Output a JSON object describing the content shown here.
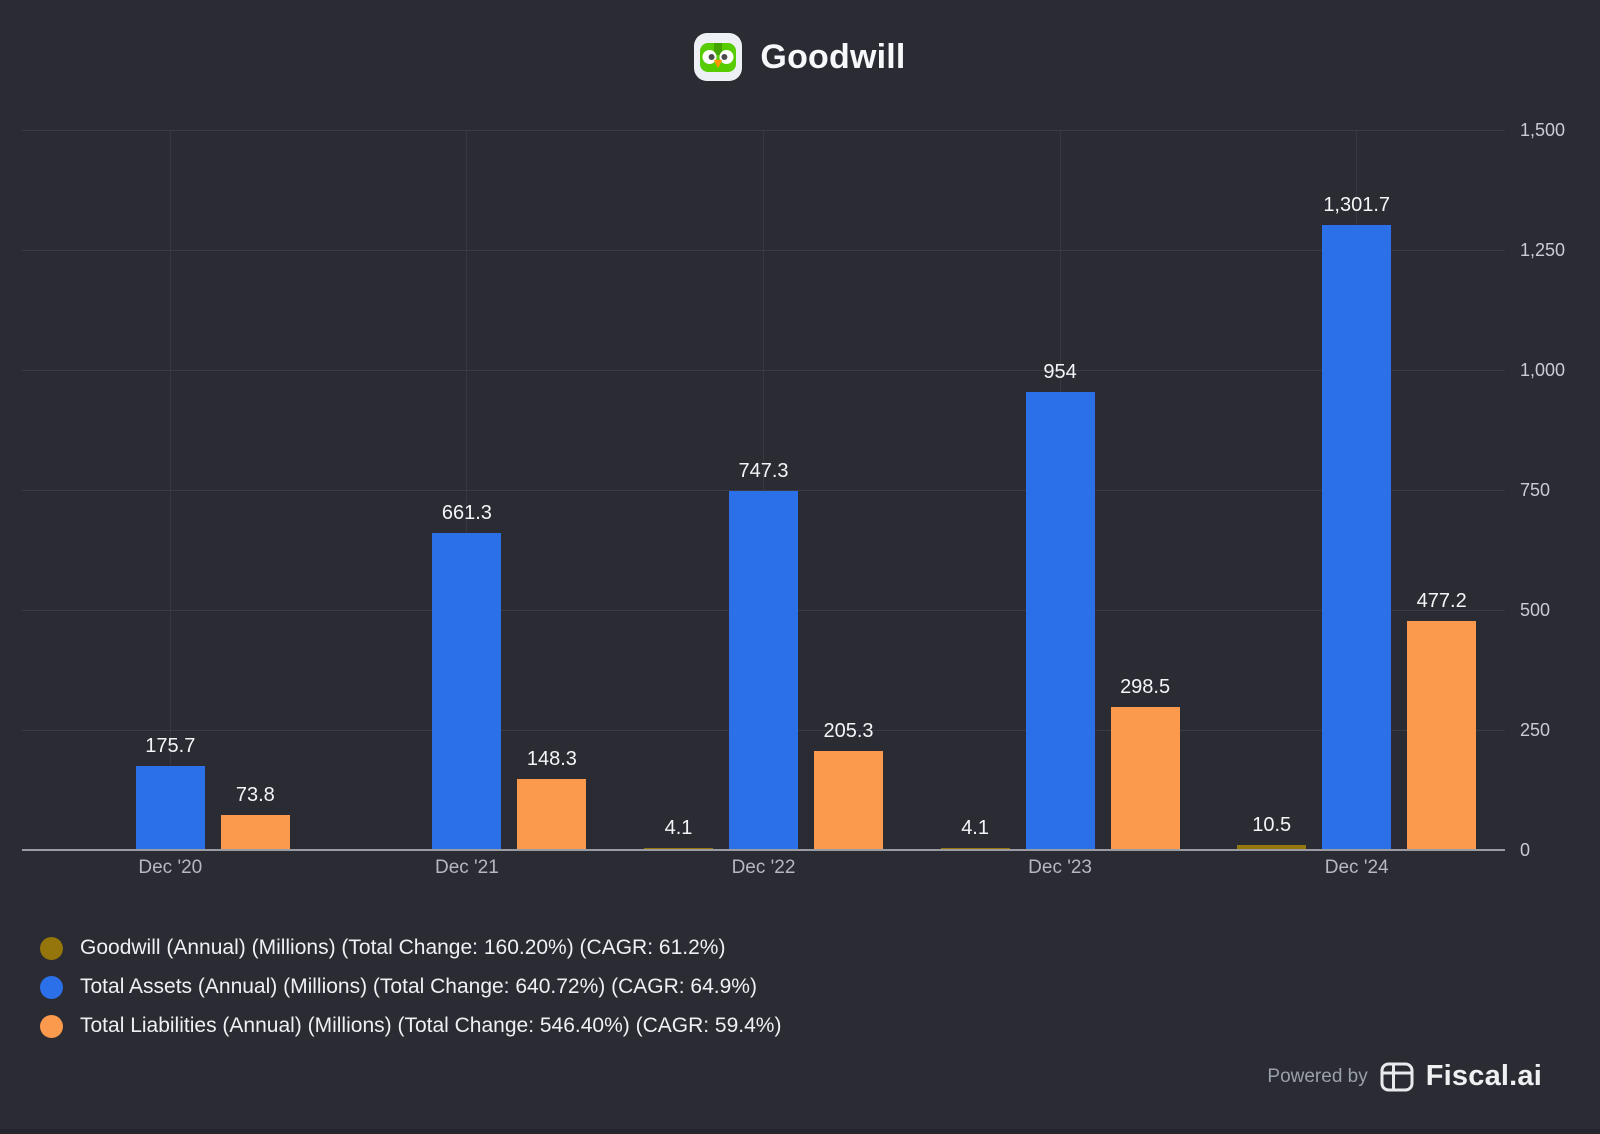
{
  "title": "Goodwill",
  "axis": {
    "ticks": [
      {
        "value": 0,
        "label": "0"
      },
      {
        "value": 250,
        "label": "250"
      },
      {
        "value": 500,
        "label": "500"
      },
      {
        "value": 750,
        "label": "750"
      },
      {
        "value": 1000,
        "label": "1,000"
      },
      {
        "value": 1250,
        "label": "1,250"
      },
      {
        "value": 1500,
        "label": "1,500"
      }
    ]
  },
  "chart_data": {
    "type": "bar",
    "title": "Goodwill",
    "categories": [
      "Dec '20",
      "Dec '21",
      "Dec '22",
      "Dec '23",
      "Dec '24"
    ],
    "series": [
      {
        "name": "Goodwill (Annual) (Millions) (Total Change: 160.20%) (CAGR: 61.2%)",
        "color": "#94760a",
        "values": [
          null,
          null,
          4.1,
          4.1,
          10.5
        ],
        "labels": [
          "",
          "",
          "4.1",
          "4.1",
          "10.5"
        ]
      },
      {
        "name": "Total Assets (Annual) (Millions) (Total Change: 640.72%) (CAGR: 64.9%)",
        "color": "#2b70e8",
        "values": [
          175.7,
          661.3,
          747.3,
          954,
          1301.7
        ],
        "labels": [
          "175.7",
          "661.3",
          "747.3",
          "954",
          "1,301.7"
        ]
      },
      {
        "name": "Total Liabilities (Annual) (Millions) (Total Change: 546.40%) (CAGR: 59.4%)",
        "color": "#fb9a4d",
        "values": [
          73.8,
          148.3,
          205.3,
          298.5,
          477.2
        ],
        "labels": [
          "73.8",
          "148.3",
          "205.3",
          "298.5",
          "477.2"
        ]
      }
    ],
    "ylim": [
      0,
      1500
    ],
    "y_axis_side": "right",
    "grid": true,
    "legend_position": "bottom-left"
  },
  "footer": {
    "powered_by": "Powered by",
    "brand": "Fiscal.ai"
  },
  "colors": {
    "background": "#2a2b33",
    "gridline": "#3a3b44",
    "axis_line": "#9a9ca4",
    "goodwill": "#94760a",
    "assets": "#2b70e8",
    "liabilities": "#fb9a4d"
  },
  "icons": {
    "title_icon": "duolingo-app-icon",
    "footer_icon": "fiscal-ai-logo-icon"
  }
}
